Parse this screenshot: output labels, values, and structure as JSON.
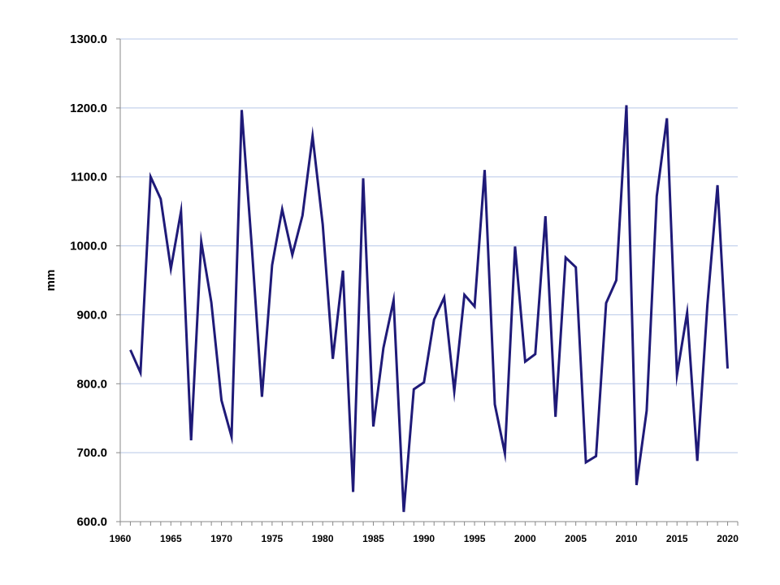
{
  "chart_data": {
    "type": "line",
    "title": "",
    "xlabel": "",
    "ylabel": "mm",
    "xlim": [
      1960,
      2021
    ],
    "ylim": [
      600,
      1300
    ],
    "grid": true,
    "legend": "none",
    "line_color": "#1f1a78",
    "grid_color": "#b8c8e8",
    "y_ticks": [
      "600.0",
      "700.0",
      "800.0",
      "900.0",
      "1000.0",
      "1100.0",
      "1200.0",
      "1300.0"
    ],
    "x_ticks": [
      "1960",
      "1965",
      "1970",
      "1975",
      "1980",
      "1985",
      "1990",
      "1995",
      "2000",
      "2005",
      "2010",
      "2015",
      "2020"
    ],
    "x": [
      1961,
      1962,
      1963,
      1964,
      1965,
      1966,
      1967,
      1968,
      1969,
      1970,
      1971,
      1972,
      1973,
      1974,
      1975,
      1976,
      1977,
      1978,
      1979,
      1980,
      1981,
      1982,
      1983,
      1984,
      1985,
      1986,
      1987,
      1988,
      1989,
      1990,
      1991,
      1992,
      1993,
      1994,
      1995,
      1996,
      1997,
      1998,
      1999,
      2000,
      2001,
      2002,
      2003,
      2004,
      2005,
      2006,
      2007,
      2008,
      2009,
      2010,
      2011,
      2012,
      2013,
      2014,
      2015,
      2016,
      2017,
      2018,
      2019,
      2020
    ],
    "series": [
      {
        "values": [
          849,
          816,
          1100,
          1068,
          967,
          1050,
          718,
          1006,
          918,
          776,
          723,
          1197,
          997,
          781,
          972,
          1053,
          987,
          1044,
          1159,
          1031,
          836,
          964,
          643,
          1098,
          738,
          852,
          921,
          614,
          792,
          802,
          893,
          925,
          789,
          929,
          912,
          1110,
          770,
          699,
          999,
          832,
          843,
          1043,
          752,
          983,
          969,
          686,
          695,
          917,
          950,
          1204,
          653,
          761,
          1072,
          1185,
          813,
          903,
          688,
          914,
          1088,
          822
        ]
      }
    ]
  }
}
